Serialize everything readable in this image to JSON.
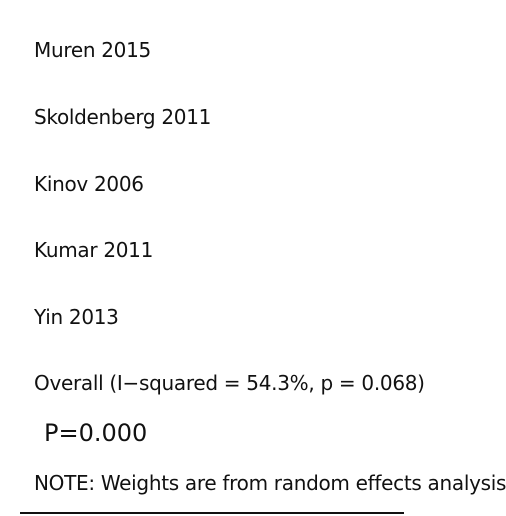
{
  "chart_data": {
    "type": "table",
    "studies": [
      "Muren 2015",
      "Skoldenberg 2011",
      "Kinov 2006",
      "Kumar 2011",
      "Yin 2013"
    ],
    "overall_label": "Overall  (I−squared = 54.3%, p = 0.068)",
    "p_value": "P=0.000",
    "note": "NOTE: Weights are from random effects analysis"
  }
}
